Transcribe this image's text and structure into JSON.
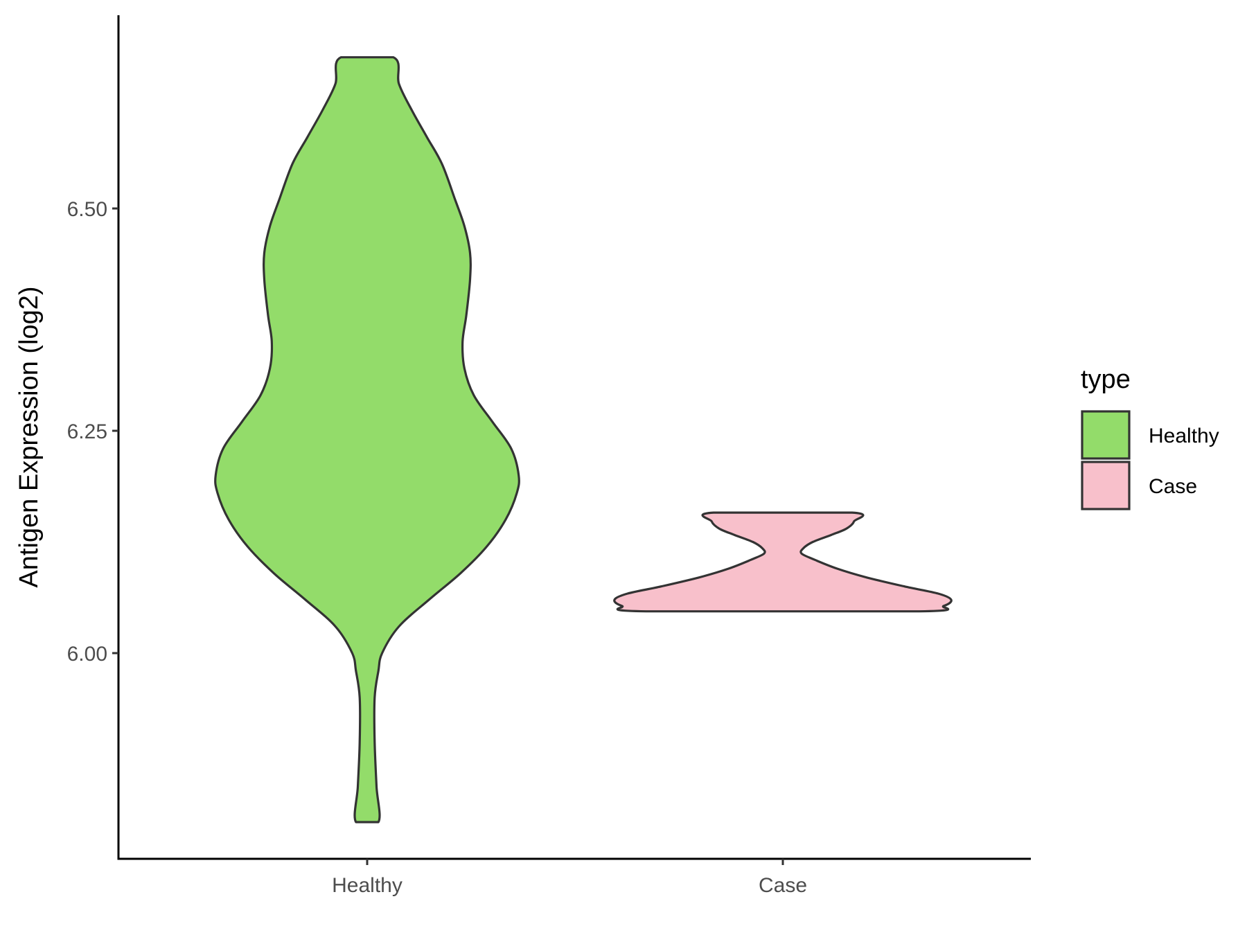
{
  "chart_data": {
    "type": "violin",
    "ylabel": "Antigen Expression (log2)",
    "xlabel": "",
    "categories": [
      "Healthy",
      "Case"
    ],
    "y_ticks": [
      6.0,
      6.25,
      6.5
    ],
    "y_tick_labels": [
      "6.00",
      "6.25",
      "6.50"
    ],
    "ylim": [
      5.77,
      6.73
    ],
    "grid": false,
    "legend": {
      "title": "type",
      "position": "right",
      "entries": [
        {
          "label": "Healthy",
          "color": "#93DC6A"
        },
        {
          "label": "Case",
          "color": "#F8C0CB"
        }
      ]
    },
    "series": [
      {
        "category": "Healthy",
        "color": "#93DC6A",
        "ymin": 5.81,
        "ymax": 6.67,
        "density_profile": [
          [
            5.81,
            0.06
          ],
          [
            5.85,
            0.05
          ],
          [
            5.9,
            0.04
          ],
          [
            5.95,
            0.04
          ],
          [
            5.98,
            0.06
          ],
          [
            6.0,
            0.08
          ],
          [
            6.03,
            0.17
          ],
          [
            6.06,
            0.33
          ],
          [
            6.09,
            0.5
          ],
          [
            6.12,
            0.64
          ],
          [
            6.15,
            0.74
          ],
          [
            6.18,
            0.8
          ],
          [
            6.2,
            0.81
          ],
          [
            6.23,
            0.77
          ],
          [
            6.26,
            0.67
          ],
          [
            6.29,
            0.57
          ],
          [
            6.32,
            0.52
          ],
          [
            6.35,
            0.51
          ],
          [
            6.38,
            0.53
          ],
          [
            6.42,
            0.55
          ],
          [
            6.45,
            0.55
          ],
          [
            6.48,
            0.52
          ],
          [
            6.51,
            0.47
          ],
          [
            6.55,
            0.4
          ],
          [
            6.58,
            0.32
          ],
          [
            6.61,
            0.24
          ],
          [
            6.64,
            0.17
          ],
          [
            6.67,
            0.14
          ]
        ]
      },
      {
        "category": "Case",
        "color": "#F8C0CB",
        "ymin": 6.047,
        "ymax": 6.158,
        "density_profile": [
          [
            6.047,
            0.73
          ],
          [
            6.053,
            0.86
          ],
          [
            6.06,
            0.9
          ],
          [
            6.067,
            0.83
          ],
          [
            6.075,
            0.65
          ],
          [
            6.085,
            0.45
          ],
          [
            6.095,
            0.29
          ],
          [
            6.105,
            0.17
          ],
          [
            6.112,
            0.1
          ],
          [
            6.118,
            0.11
          ],
          [
            6.125,
            0.16
          ],
          [
            6.133,
            0.26
          ],
          [
            6.14,
            0.34
          ],
          [
            6.148,
            0.38
          ],
          [
            6.158,
            0.37
          ]
        ]
      }
    ]
  }
}
